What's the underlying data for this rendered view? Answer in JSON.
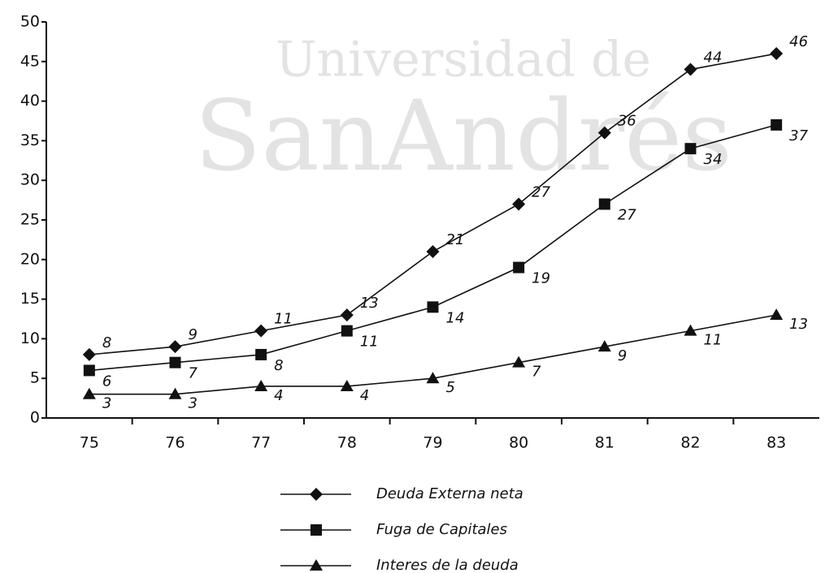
{
  "chart_data": {
    "type": "line",
    "watermark": [
      "Universidad de",
      "SanAndrés"
    ],
    "categories": [
      "75",
      "76",
      "77",
      "78",
      "79",
      "80",
      "81",
      "82",
      "83"
    ],
    "series": [
      {
        "name": "Deuda Externa neta",
        "color": "#111111",
        "marker": "diamond",
        "values": [
          8,
          9,
          11,
          13,
          21,
          27,
          36,
          44,
          46
        ]
      },
      {
        "name": "Fuga de Capitales",
        "color": "#111111",
        "marker": "square",
        "values": [
          6,
          7,
          8,
          11,
          14,
          19,
          27,
          34,
          37
        ]
      },
      {
        "name": "Interes de la deuda",
        "color": "#111111",
        "marker": "triangle",
        "values": [
          3,
          3,
          4,
          4,
          5,
          7,
          9,
          11,
          13
        ]
      }
    ],
    "ylim": [
      0,
      50
    ],
    "yticks": [
      0,
      5,
      10,
      15,
      20,
      25,
      30,
      35,
      40,
      45,
      50
    ],
    "grid": false,
    "legend": "bottom"
  }
}
